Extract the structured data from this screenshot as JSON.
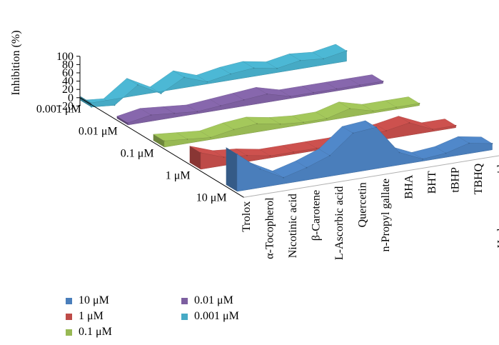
{
  "chart_data": {
    "type": "area",
    "ylabel": "Inhibition (%)",
    "ylim": [
      -20,
      100
    ],
    "yticks": [
      "100",
      "80",
      "60",
      "40",
      "20",
      "0",
      "−20"
    ],
    "categories": [
      "Trolox",
      "α-Tocopherol",
      "Nicotinic acid",
      "β-Carotene",
      "L-Ascorbic acid",
      "Quercetin",
      "n-Propyl gallate",
      "BHA",
      "BHT",
      "tBHP",
      "TBHQ",
      "Hydrogen peroxide"
    ],
    "depth_labels": [
      "0.001 μM",
      "0.01 μM",
      "0.1 μM",
      "1 μM",
      "10 μM"
    ],
    "series": [
      {
        "name": "10 μM",
        "color": "#4a7ebb",
        "values": [
          90,
          45,
          15,
          30,
          50,
          95,
          100,
          30,
          5,
          10,
          25,
          15
        ]
      },
      {
        "name": "1 μM",
        "color": "#be4b48",
        "values": [
          40,
          20,
          15,
          5,
          5,
          5,
          5,
          15,
          20,
          30,
          5,
          5
        ]
      },
      {
        "name": "0.1 μM",
        "color": "#98b954",
        "values": [
          15,
          10,
          5,
          15,
          20,
          10,
          5,
          5,
          20,
          5,
          5,
          5
        ]
      },
      {
        "name": "0.01 μM",
        "color": "#7d5fa0",
        "values": [
          5,
          15,
          10,
          5,
          10,
          15,
          20,
          5,
          5,
          5,
          5,
          5
        ]
      },
      {
        "name": "0.001 μM",
        "color": "#46aac5",
        "values": [
          -10,
          -15,
          25,
          -5,
          25,
          5,
          15,
          20,
          10,
          20,
          15,
          25
        ]
      }
    ],
    "legend": {
      "position": "bottom-left",
      "items": [
        {
          "label": "10 μM",
          "color": "#4a7ebb"
        },
        {
          "label": "1 μM",
          "color": "#be4b48"
        },
        {
          "label": "0.1 μM",
          "color": "#98b954"
        },
        {
          "label": "0.01 μM",
          "color": "#7d5fa0"
        },
        {
          "label": "0.001 μM",
          "color": "#46aac5"
        }
      ]
    }
  }
}
